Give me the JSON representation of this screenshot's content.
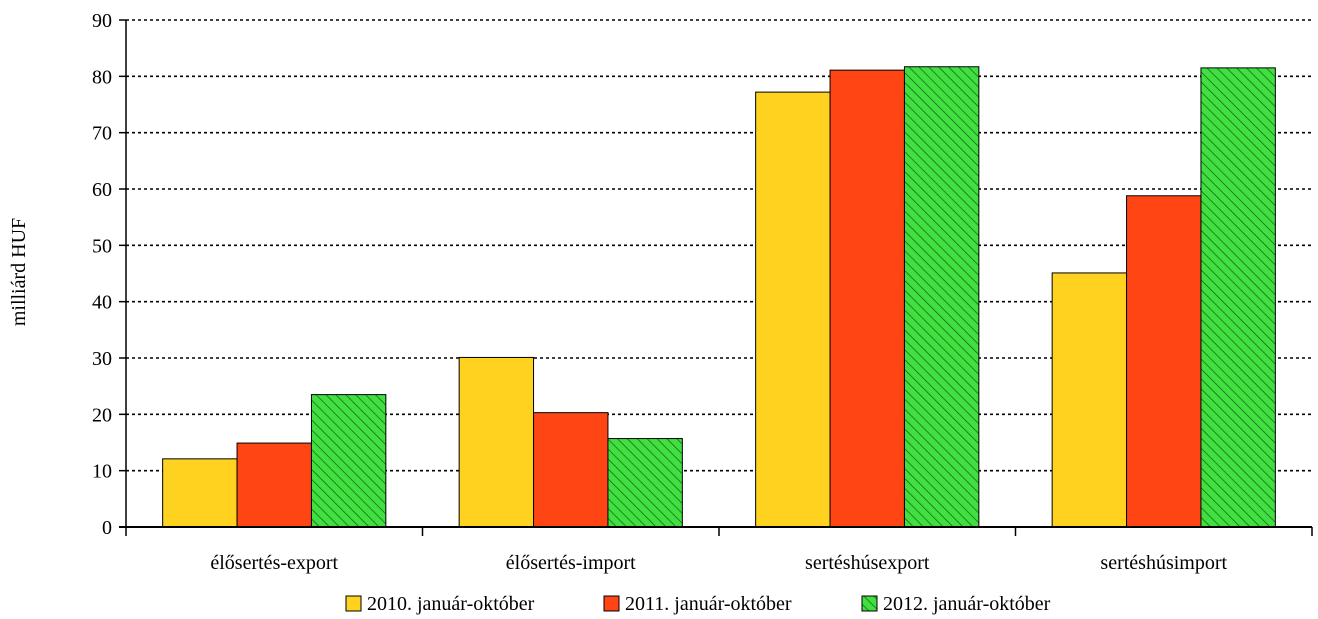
{
  "chart_data": {
    "type": "bar",
    "categories": [
      "élősertés-export",
      "élősertés-import",
      "sertéshúsexport",
      "sertéshúsimport"
    ],
    "series": [
      {
        "name": "2010. január-október",
        "color": "#FFD21F",
        "pattern": "solid",
        "values": [
          12.1,
          30.1,
          77.2,
          45.1
        ]
      },
      {
        "name": "2011. január-október",
        "color": "#FF4514",
        "pattern": "solid",
        "values": [
          14.9,
          20.3,
          81.1,
          58.8
        ]
      },
      {
        "name": "2012. január-október",
        "color": "#3FE03F",
        "pattern": "hatched",
        "values": [
          23.5,
          15.7,
          81.7,
          81.5
        ]
      }
    ],
    "ylabel": "milliárd HUF",
    "xlabel": "",
    "ylim": [
      0,
      90
    ],
    "yticks": [
      0,
      10,
      20,
      30,
      40,
      50,
      60,
      70,
      80,
      90
    ],
    "grid": "dotted-horizontal",
    "legend_position": "bottom"
  }
}
